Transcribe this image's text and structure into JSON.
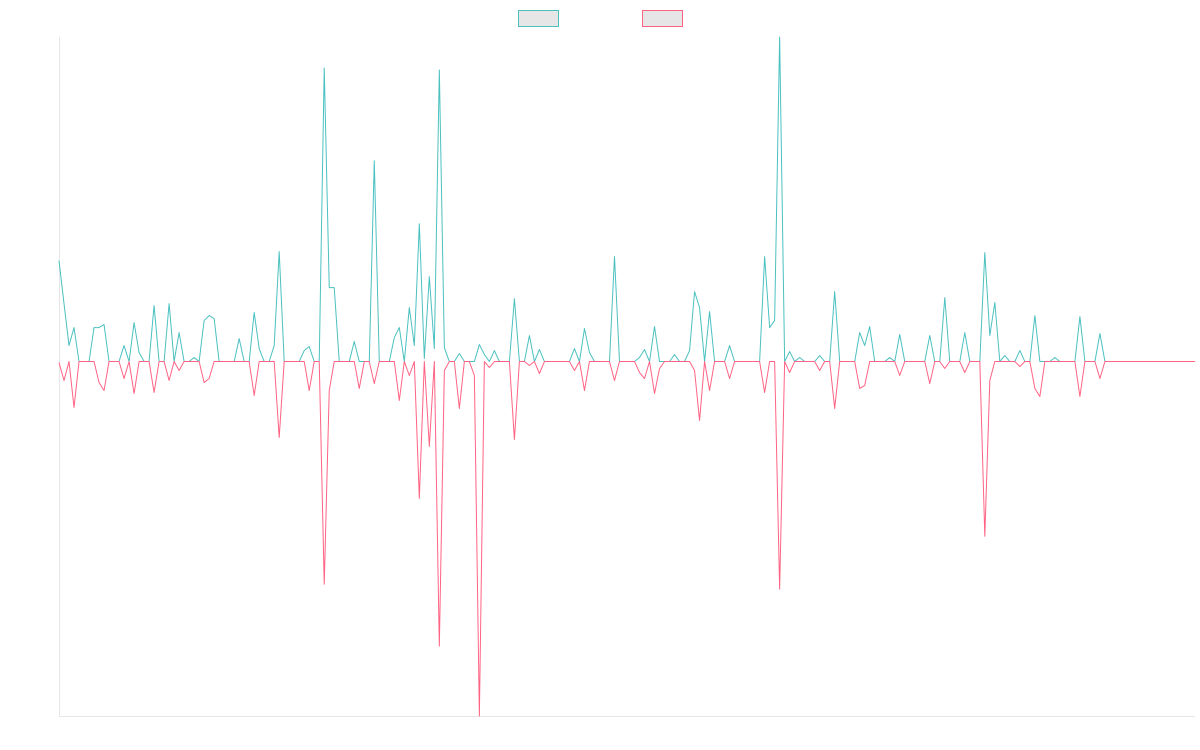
{
  "chart_data": {
    "type": "line",
    "legend": "top",
    "grid": false,
    "ylim": [
      -3.55,
      3.25
    ],
    "series": [
      {
        "color": "#4bc0c0",
        "values": [
          1.01,
          0.58,
          0.16,
          0.34,
          0,
          0,
          0,
          0.34,
          0.34,
          0.37,
          0,
          0,
          0,
          0.16,
          0,
          0.39,
          0.09,
          0,
          0,
          0.56,
          0,
          0,
          0.58,
          0,
          0.29,
          0,
          0,
          0.04,
          0,
          0.41,
          0.46,
          0.43,
          0,
          0,
          0,
          0,
          0.23,
          0,
          0,
          0.49,
          0.13,
          0,
          0,
          0.16,
          1.1,
          0,
          0,
          0,
          0,
          0.11,
          0.15,
          0,
          0,
          2.94,
          0.74,
          0.74,
          0,
          0,
          0,
          0.2,
          0,
          0,
          0,
          2.01,
          0,
          0,
          0,
          0.24,
          0.34,
          0,
          0.54,
          0.16,
          1.38,
          0.03,
          0.85,
          0.13,
          2.92,
          0.14,
          0,
          0,
          0.08,
          0,
          0,
          0,
          0.17,
          0.07,
          0,
          0.11,
          0,
          0,
          0,
          0.63,
          0,
          0,
          0.26,
          0,
          0.12,
          0,
          0,
          0,
          0,
          0,
          0,
          0.13,
          0,
          0.33,
          0.09,
          0,
          0,
          0,
          0,
          1.05,
          0,
          0,
          0,
          0,
          0.04,
          0.12,
          0,
          0.35,
          0,
          0,
          0,
          0.07,
          0,
          0,
          0.11,
          0.7,
          0.54,
          0,
          0.5,
          0,
          0,
          0,
          0.16,
          0,
          0,
          0,
          0,
          0,
          0,
          1.05,
          0.34,
          0.41,
          3.25,
          0,
          0.1,
          0,
          0.04,
          0,
          0,
          0,
          0.06,
          0,
          0,
          0.7,
          0,
          0,
          0,
          0,
          0.29,
          0.16,
          0.35,
          0,
          0,
          0,
          0.04,
          0,
          0.27,
          0,
          0,
          0,
          0,
          0,
          0.26,
          0,
          0,
          0.64,
          0,
          0,
          0,
          0.29,
          0,
          0,
          0,
          1.09,
          0.26,
          0.59,
          0,
          0.06,
          0,
          0,
          0.11,
          0,
          0,
          0.46,
          0,
          0,
          0,
          0.04,
          0,
          0,
          0,
          0,
          0.45,
          0,
          0,
          0,
          0.28,
          0,
          0,
          0,
          0,
          0,
          0,
          0,
          0,
          0,
          0,
          0,
          0,
          0,
          0,
          0,
          0,
          0,
          0,
          0
        ]
      },
      {
        "color": "#ff6384",
        "values": [
          -0.01,
          -0.19,
          0,
          -0.46,
          0,
          0,
          0,
          0,
          -0.21,
          -0.29,
          0,
          0,
          0,
          -0.17,
          0,
          -0.32,
          0,
          0,
          0,
          -0.31,
          0,
          0,
          -0.19,
          0,
          -0.09,
          0,
          0,
          0,
          0,
          -0.21,
          -0.17,
          0,
          0,
          0,
          0,
          0,
          0,
          0,
          0,
          -0.34,
          0,
          0,
          0,
          0,
          -0.76,
          0,
          0,
          0,
          0,
          0,
          -0.29,
          0,
          0,
          -2.23,
          -0.29,
          0,
          0,
          0,
          0,
          0,
          -0.27,
          0,
          0,
          -0.22,
          0,
          0,
          0,
          0,
          -0.39,
          0,
          -0.14,
          0,
          -1.37,
          0,
          -0.85,
          0,
          -2.85,
          -0.09,
          0,
          0,
          -0.47,
          0,
          0,
          -0.14,
          -3.55,
          0,
          -0.06,
          0,
          0,
          0,
          0,
          -0.78,
          0,
          0,
          -0.04,
          0,
          -0.12,
          0,
          0,
          0,
          0,
          0,
          0,
          -0.09,
          0,
          -0.29,
          0,
          0,
          0,
          0,
          0,
          -0.19,
          0,
          0,
          0,
          0,
          -0.11,
          -0.17,
          0,
          -0.32,
          -0.07,
          0,
          0,
          0,
          0,
          0,
          0,
          -0.09,
          -0.59,
          0,
          -0.29,
          0,
          0,
          0,
          -0.17,
          0,
          0,
          0,
          0,
          0,
          0,
          -0.31,
          0,
          0,
          -2.28,
          0,
          -0.11,
          0,
          0,
          0,
          0,
          0,
          -0.09,
          0,
          0,
          -0.47,
          0,
          0,
          0,
          0,
          -0.27,
          -0.24,
          0,
          0,
          0,
          0,
          0,
          0,
          -0.14,
          0,
          0,
          0,
          0,
          0,
          -0.22,
          0,
          0,
          -0.07,
          0,
          0,
          0,
          -0.11,
          0,
          0,
          0,
          -1.75,
          -0.19,
          0,
          0,
          0,
          0,
          0,
          -0.05,
          0,
          0,
          -0.27,
          -0.35,
          0,
          0,
          0,
          0,
          0,
          0,
          0,
          -0.35,
          0,
          0,
          0,
          -0.17,
          0,
          0,
          0,
          0,
          0,
          0,
          0,
          0,
          0,
          0,
          0,
          0,
          0,
          0,
          0,
          0,
          0,
          0,
          0
        ]
      }
    ]
  }
}
